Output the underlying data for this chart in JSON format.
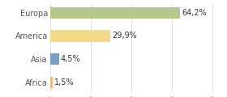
{
  "categories": [
    "Africa",
    "Asia",
    "America",
    "Europa"
  ],
  "values": [
    1.5,
    4.5,
    29.9,
    64.2
  ],
  "bar_colors": [
    "#f5b97a",
    "#7b9fc7",
    "#f5d98b",
    "#b5c98e"
  ],
  "labels": [
    "1,5%",
    "4,5%",
    "29,9%",
    "64,2%"
  ],
  "xlim": [
    0,
    85
  ],
  "background_color": "#ffffff",
  "bar_height": 0.5,
  "label_fontsize": 7.0,
  "tick_fontsize": 7.0,
  "grid_ticks": [
    0,
    20,
    40,
    60,
    80
  ]
}
